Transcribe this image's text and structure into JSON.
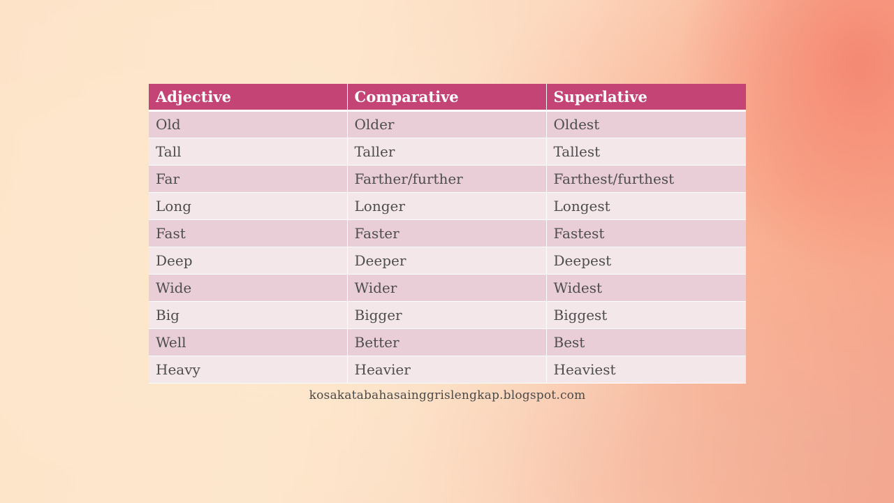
{
  "table": {
    "headers": [
      "Adjective",
      "Comparative",
      "Superlative"
    ],
    "rows": [
      [
        "Old",
        "Older",
        "Oldest"
      ],
      [
        "Tall",
        "Taller",
        "Tallest"
      ],
      [
        "Far",
        "Farther/further",
        "Farthest/furthest"
      ],
      [
        "Long",
        "Longer",
        "Longest"
      ],
      [
        "Fast",
        "Faster",
        "Fastest"
      ],
      [
        "Deep",
        "Deeper",
        "Deepest"
      ],
      [
        "Wide",
        "Wider",
        "Widest"
      ],
      [
        "Big",
        "Bigger",
        "Biggest"
      ],
      [
        "Well",
        "Better",
        "Best"
      ],
      [
        "Heavy",
        "Heavier",
        "Heaviest"
      ]
    ]
  },
  "footer": {
    "text": "kosakatabahasainggrislengkap.blogspot.com"
  },
  "colors": {
    "header_bg": "#c44575",
    "row_odd_bg": "#e9ced7",
    "row_even_bg": "#f3e7ea"
  }
}
